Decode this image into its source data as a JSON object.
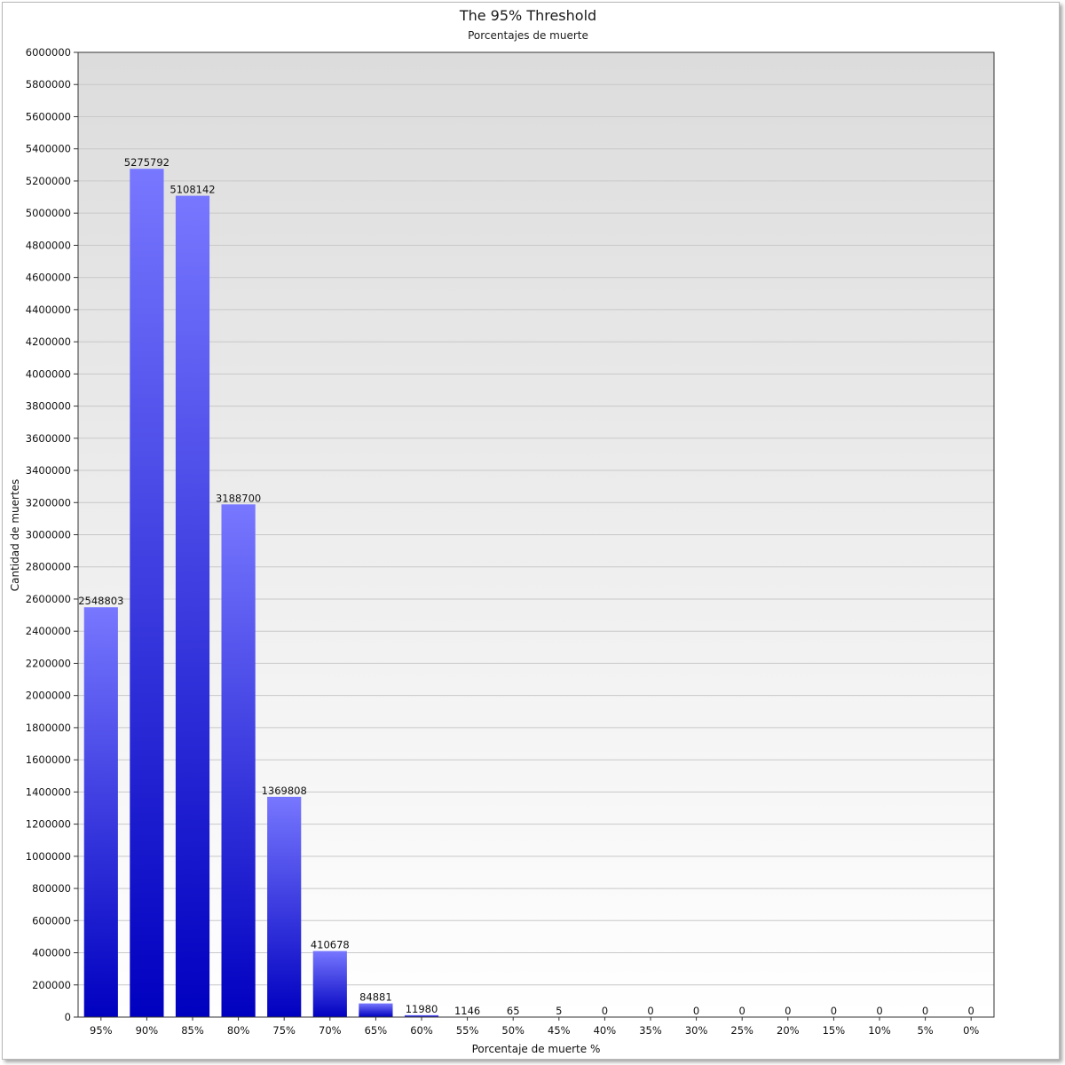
{
  "chart_data": {
    "type": "bar",
    "title": "The 95% Threshold",
    "subtitle": "Porcentajes de muerte",
    "xlabel": "Porcentaje de muerte %",
    "ylabel": "Cantidad de muertes",
    "categories": [
      "95%",
      "90%",
      "85%",
      "80%",
      "75%",
      "70%",
      "65%",
      "60%",
      "55%",
      "50%",
      "45%",
      "40%",
      "35%",
      "30%",
      "25%",
      "20%",
      "15%",
      "10%",
      "5%",
      "0%"
    ],
    "values": [
      2548803,
      5275792,
      5108142,
      3188700,
      1369808,
      410678,
      84881,
      11980,
      1146,
      65,
      5,
      0,
      0,
      0,
      0,
      0,
      0,
      0,
      0,
      0
    ],
    "data_labels": [
      "2548803",
      "5275792",
      "5108142",
      "3188700",
      "1369808",
      "410678",
      "84881",
      "11980",
      "1146",
      "65",
      "5",
      "0",
      "0",
      "0",
      "0",
      "0",
      "0",
      "0",
      "0",
      "0"
    ],
    "ylim": [
      0,
      6000000
    ],
    "yticks": [
      "0",
      "200000",
      "400000",
      "600000",
      "800000",
      "1000000",
      "1200000",
      "1400000",
      "1600000",
      "1800000",
      "2000000",
      "2200000",
      "2400000",
      "2600000",
      "2800000",
      "3000000",
      "3200000",
      "3400000",
      "3600000",
      "3800000",
      "4000000",
      "4200000",
      "4400000",
      "4600000",
      "4800000",
      "5000000",
      "5200000",
      "5400000",
      "5600000",
      "5800000",
      "6000000"
    ],
    "grid": true,
    "legend": "none",
    "colors": {
      "bar_top": "#7777ff",
      "bar_bottom": "#0000c0",
      "plot_bg_top": "#dcdcdc",
      "plot_bg_bottom": "#ffffff",
      "grid": "#c8c8c8"
    }
  }
}
